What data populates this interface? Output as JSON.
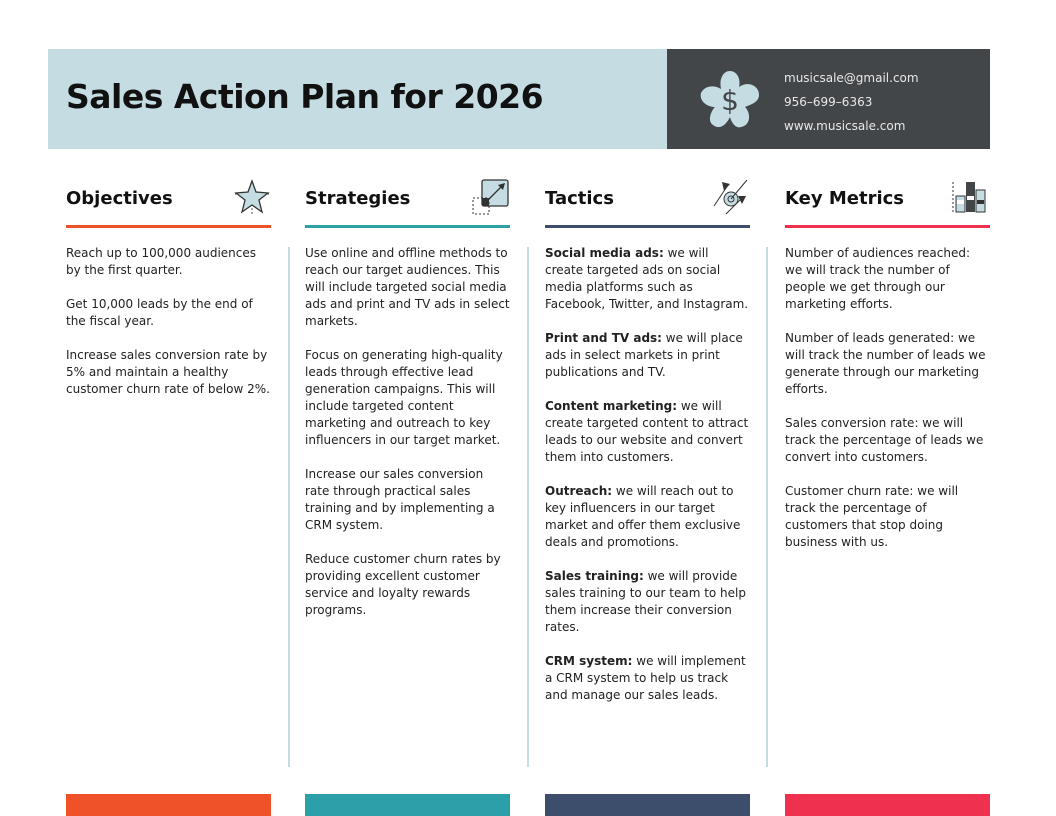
{
  "header": {
    "title": "Sales Action Plan for 2026",
    "email": "musicsale@gmail.com",
    "phone": "956–699–6363",
    "website": "www.musicsale.com",
    "logo_icon": "dollar-flower-icon"
  },
  "colors": {
    "objectives": "#ef5228",
    "strategies": "#2ba0a8",
    "tactics": "#3d4e6c",
    "metrics": "#f0304f",
    "header_light": "#c5dce3",
    "header_dark": "#434649"
  },
  "columns": [
    {
      "title": "Objectives",
      "icon": "star-icon",
      "items": [
        {
          "bold": "",
          "text": "Reach up to 100,000 audiences by the first quarter."
        },
        {
          "bold": "",
          "text": "Get 10,000 leads by the end of the fiscal year."
        },
        {
          "bold": "",
          "text": "Increase sales conversion rate by 5% and maintain a healthy customer churn rate of below 2%."
        }
      ]
    },
    {
      "title": "Strategies",
      "icon": "resize-arrow-icon",
      "items": [
        {
          "bold": "",
          "text": "Use online and offline methods to reach our target audiences. This will include targeted social media ads and print and TV ads in select markets."
        },
        {
          "bold": "",
          "text": "Focus on generating high-quality leads through effective lead generation campaigns. This will include targeted content marketing and outreach to key influencers in our target market."
        },
        {
          "bold": "",
          "text": "Increase our sales conversion rate through practical sales training and by implementing a CRM system."
        },
        {
          "bold": "",
          "text": "Reduce customer churn rates by providing excellent customer service and loyalty rewards programs."
        }
      ]
    },
    {
      "title": "Tactics",
      "icon": "target-arrows-icon",
      "items": [
        {
          "bold": "Social media ads:",
          "text": " we will create targeted ads on social media platforms such as Facebook, Twitter, and Instagram."
        },
        {
          "bold": "Print and TV ads:",
          "text": " we will place ads in select markets in print publications and TV."
        },
        {
          "bold": "Content marketing:",
          "text": " we will create targeted content to attract leads to our website and convert them into customers."
        },
        {
          "bold": "Outreach:",
          "text": " we will reach out to key influencers in our target market and offer them exclusive deals and promotions."
        },
        {
          "bold": "Sales training:",
          "text": " we will provide sales training to our team to help them increase their conversion rates."
        },
        {
          "bold": "CRM system:",
          "text": " we will implement a CRM system to help us track and manage our sales leads."
        }
      ]
    },
    {
      "title": "Key Metrics",
      "icon": "bar-chart-icon",
      "items": [
        {
          "bold": "",
          "text": "Number of audiences reached: we will track the number of people we get through our marketing efforts."
        },
        {
          "bold": "",
          "text": "Number of leads generated: we will track the number of leads we generate through our marketing efforts."
        },
        {
          "bold": "",
          "text": "Sales conversion rate: we will track the percentage of leads we convert into customers."
        },
        {
          "bold": "",
          "text": "Customer churn rate: we will track the percentage of customers that stop doing business with us."
        }
      ]
    }
  ]
}
